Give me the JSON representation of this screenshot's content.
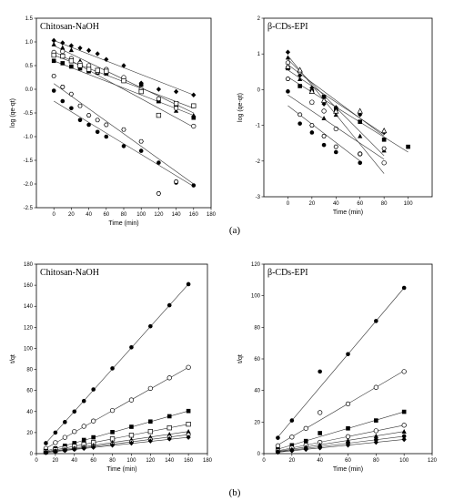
{
  "captions": [
    "(a)",
    "(b)"
  ],
  "chart_data": [
    {
      "type": "scatter",
      "title": "Chitosan-NaOH",
      "xlabel": "Time (min)",
      "ylabel": "log (qe-qt)",
      "xlim": [
        -20,
        180
      ],
      "ylim": [
        -2.5,
        1.5
      ],
      "xticks": [
        0,
        20,
        40,
        60,
        80,
        100,
        120,
        140,
        160,
        180
      ],
      "yticks": [
        -2.5,
        -2.0,
        -1.5,
        -1.0,
        -0.5,
        0.0,
        0.5,
        1.0,
        1.5
      ],
      "series": [
        {
          "marker": "diamond",
          "x": [
            0,
            10,
            20,
            30,
            40,
            50,
            60,
            80,
            100,
            120,
            140,
            160
          ],
          "y": [
            1.03,
            0.98,
            0.92,
            0.87,
            0.82,
            0.75,
            0.63,
            0.5,
            0.13,
            0.0,
            -0.05,
            -0.12
          ],
          "fit": [
            [
              0,
              1.03
            ],
            [
              160,
              -0.12
            ]
          ]
        },
        {
          "marker": "triangle",
          "x": [
            0,
            10,
            20,
            30,
            40,
            50,
            60,
            80,
            100,
            120,
            140,
            160
          ],
          "y": [
            0.95,
            0.88,
            0.83,
            0.6,
            0.47,
            0.38,
            0.35,
            0.2,
            0.0,
            -0.25,
            -0.45,
            -0.55
          ],
          "fit": [
            [
              0,
              0.92
            ],
            [
              160,
              -0.5
            ]
          ]
        },
        {
          "marker": "square-filled",
          "x": [
            0,
            10,
            20,
            30,
            40,
            50,
            60,
            80,
            100,
            120,
            140,
            160
          ],
          "y": [
            0.6,
            0.55,
            0.48,
            0.44,
            0.38,
            0.35,
            0.33,
            0.2,
            0.1,
            -0.25,
            -0.35,
            -0.6
          ],
          "fit": [
            [
              0,
              0.6
            ],
            [
              160,
              -0.55
            ]
          ]
        },
        {
          "marker": "circle-open",
          "x": [
            0,
            10,
            20,
            30,
            40,
            50,
            60,
            80,
            100,
            120,
            140,
            160
          ],
          "y": [
            0.78,
            0.8,
            0.65,
            0.55,
            0.5,
            0.37,
            0.42,
            0.25,
            0.0,
            -0.2,
            -0.4,
            -0.78
          ],
          "fit": [
            [
              0,
              0.8
            ],
            [
              160,
              -0.8
            ]
          ]
        },
        {
          "marker": "square-open",
          "x": [
            0,
            10,
            20,
            30,
            40,
            50,
            60,
            80,
            100,
            120,
            140,
            160
          ],
          "y": [
            0.72,
            0.7,
            0.6,
            0.5,
            0.42,
            0.4,
            0.38,
            0.18,
            -0.05,
            -0.55,
            -0.3,
            -0.35
          ],
          "fit": [
            [
              0,
              0.72
            ],
            [
              160,
              -0.4
            ]
          ]
        },
        {
          "marker": "circle-filled",
          "x": [
            0,
            10,
            20,
            30,
            40,
            50,
            60,
            80,
            100,
            120,
            140,
            160
          ],
          "y": [
            -0.03,
            -0.25,
            -0.4,
            -0.65,
            -0.75,
            -0.9,
            -1.0,
            -1.2,
            -1.3,
            -1.55,
            -1.97,
            -2.03
          ],
          "fit": [
            [
              0,
              -0.25
            ],
            [
              160,
              -2.05
            ]
          ]
        },
        {
          "marker": "hexagon-open",
          "x": [
            0,
            10,
            20,
            30,
            40,
            50,
            60,
            80,
            100,
            120,
            140
          ],
          "y": [
            0.28,
            0.05,
            -0.1,
            -0.35,
            -0.55,
            -0.65,
            -0.75,
            -0.85,
            -1.1,
            -2.2,
            -1.95
          ],
          "fit": [
            [
              0,
              0.12
            ],
            [
              160,
              -2.0
            ]
          ]
        }
      ]
    },
    {
      "type": "scatter",
      "title": "β-CDs-EPI",
      "xlabel": "Time (min)",
      "ylabel": "log (qe-qt)",
      "xlim": [
        -20,
        120
      ],
      "ylim": [
        -3,
        2
      ],
      "xticks": [
        0,
        20,
        40,
        60,
        80,
        100
      ],
      "yticks": [
        -3,
        -2,
        -1,
        0,
        1,
        2
      ],
      "series": [
        {
          "marker": "diamond",
          "x": [
            0,
            10,
            20,
            30,
            40,
            60,
            80
          ],
          "y": [
            1.05,
            0.4,
            0.05,
            -0.4,
            -0.5,
            -0.7,
            -1.2
          ],
          "fit": [
            [
              0,
              0.7
            ],
            [
              80,
              -1.3
            ]
          ]
        },
        {
          "marker": "triangle",
          "x": [
            0,
            10,
            20,
            30,
            40,
            60,
            80
          ],
          "y": [
            0.9,
            0.3,
            -0.35,
            -0.8,
            -0.7,
            -1.3,
            -1.7
          ],
          "fit": [
            [
              0,
              0.85
            ],
            [
              80,
              -1.85
            ]
          ]
        },
        {
          "marker": "square-filled",
          "x": [
            0,
            10,
            20,
            30,
            40,
            60,
            80,
            100
          ],
          "y": [
            0.6,
            0.1,
            -0.05,
            -0.2,
            -0.55,
            -0.9,
            -1.4,
            -1.6
          ],
          "fit": [
            [
              0,
              0.35
            ],
            [
              100,
              -1.75
            ]
          ]
        },
        {
          "marker": "circle-open",
          "x": [
            0,
            10,
            20,
            30,
            40,
            60,
            80
          ],
          "y": [
            0.75,
            0.5,
            -0.35,
            -0.6,
            -1.1,
            -1.8,
            -2.05
          ],
          "fit": [
            [
              0,
              0.95
            ],
            [
              80,
              -2.35
            ]
          ]
        },
        {
          "marker": "triangle-open",
          "x": [
            0,
            10,
            20,
            30,
            40,
            60,
            80
          ],
          "y": [
            0.65,
            0.55,
            -0.05,
            -0.3,
            -0.6,
            -0.6,
            -1.15
          ],
          "fit": [
            [
              0,
              0.55
            ],
            [
              80,
              -1.25
            ]
          ]
        },
        {
          "marker": "circle-filled",
          "x": [
            0,
            10,
            20,
            30,
            40,
            60
          ],
          "y": [
            -0.05,
            -0.95,
            -1.2,
            -1.55,
            -1.75,
            -2.05
          ],
          "fit": [
            [
              0,
              -0.45
            ],
            [
              60,
              -2.0
            ]
          ]
        },
        {
          "marker": "hexagon-open",
          "x": [
            0,
            10,
            20,
            30,
            40,
            60,
            80
          ],
          "y": [
            0.3,
            -0.7,
            -1.0,
            -1.3,
            -1.6,
            -1.8,
            -1.65
          ],
          "fit": [
            [
              0,
              -0.15
            ],
            [
              80,
              -1.95
            ]
          ]
        }
      ]
    },
    {
      "type": "scatter",
      "title": "Chitosan-NaOH",
      "xlabel": "Time (min)",
      "ylabel": "t/qt",
      "xlim": [
        0,
        180
      ],
      "ylim": [
        0,
        180
      ],
      "xticks": [
        0,
        20,
        40,
        60,
        80,
        100,
        120,
        140,
        160,
        180
      ],
      "yticks": [
        0,
        20,
        40,
        60,
        80,
        100,
        120,
        140,
        160,
        180
      ],
      "series": [
        {
          "marker": "circle-filled",
          "x": [
            10,
            20,
            30,
            40,
            50,
            60,
            80,
            100,
            120,
            140,
            160
          ],
          "y": [
            10,
            20,
            30,
            40,
            50,
            61,
            81,
            101,
            121,
            141,
            161
          ],
          "fit": [
            [
              10,
              10
            ],
            [
              160,
              161
            ]
          ]
        },
        {
          "marker": "circle-open",
          "x": [
            10,
            20,
            30,
            40,
            50,
            60,
            80,
            100,
            120,
            140,
            160
          ],
          "y": [
            5,
            10.5,
            15.5,
            21,
            26,
            31,
            41,
            51,
            62,
            72,
            82
          ],
          "fit": [
            [
              10,
              5
            ],
            [
              160,
              82
            ]
          ]
        },
        {
          "marker": "square-filled",
          "x": [
            10,
            20,
            30,
            40,
            50,
            60,
            80,
            100,
            120,
            140,
            160
          ],
          "y": [
            2.5,
            5,
            7.5,
            10,
            13,
            15.5,
            20.5,
            25.5,
            30.5,
            35.5,
            40.5
          ],
          "fit": [
            [
              10,
              2.5
            ],
            [
              160,
              40.5
            ]
          ]
        },
        {
          "marker": "square-open",
          "x": [
            10,
            20,
            30,
            40,
            50,
            60,
            80,
            100,
            120,
            140,
            160
          ],
          "y": [
            1.8,
            3.5,
            5.2,
            7,
            8.8,
            10.5,
            14,
            17.5,
            21,
            24.5,
            28
          ],
          "fit": [
            [
              10,
              1.8
            ],
            [
              160,
              28
            ]
          ]
        },
        {
          "marker": "triangle",
          "x": [
            10,
            20,
            30,
            40,
            50,
            60,
            80,
            100,
            120,
            140,
            160
          ],
          "y": [
            1.4,
            2.7,
            4,
            5.3,
            6.6,
            8,
            10.6,
            13.2,
            15.8,
            18.4,
            21
          ],
          "fit": [
            [
              10,
              1.4
            ],
            [
              160,
              21
            ]
          ]
        },
        {
          "marker": "hexagon-open",
          "x": [
            10,
            20,
            30,
            40,
            50,
            60,
            80,
            100,
            120,
            140,
            160
          ],
          "y": [
            1.1,
            2.3,
            3.4,
            4.5,
            5.7,
            6.8,
            9,
            11.3,
            13.5,
            15.8,
            18
          ],
          "fit": [
            [
              10,
              1.1
            ],
            [
              160,
              18
            ]
          ]
        },
        {
          "marker": "diamond",
          "x": [
            10,
            20,
            30,
            40,
            50,
            60,
            80,
            100,
            120,
            140,
            160
          ],
          "y": [
            1,
            2,
            3,
            4,
            5,
            6,
            8,
            10,
            12,
            14,
            15.5
          ],
          "fit": [
            [
              10,
              1
            ],
            [
              160,
              15.5
            ]
          ]
        }
      ]
    },
    {
      "type": "scatter",
      "title": "β-CDs-EPI",
      "xlabel": "Time (min)",
      "ylabel": "t/qt",
      "xlim": [
        0,
        120
      ],
      "ylim": [
        0,
        120
      ],
      "xticks": [
        0,
        20,
        40,
        60,
        80,
        100,
        120
      ],
      "yticks": [
        0,
        20,
        40,
        60,
        80,
        100,
        120
      ],
      "series": [
        {
          "marker": "circle-filled",
          "x": [
            10,
            20,
            40,
            60,
            80,
            100
          ],
          "y": [
            10,
            21,
            52,
            63,
            84,
            105
          ],
          "fit": [
            [
              10,
              10.5
            ],
            [
              100,
              105
            ]
          ]
        },
        {
          "marker": "circle-open",
          "x": [
            10,
            20,
            30,
            40,
            60,
            80,
            100
          ],
          "y": [
            5,
            10.5,
            16,
            26,
            31.5,
            42,
            52
          ],
          "fit": [
            [
              10,
              5.5
            ],
            [
              100,
              52.5
            ]
          ]
        },
        {
          "marker": "square-filled",
          "x": [
            10,
            20,
            30,
            40,
            60,
            80,
            100
          ],
          "y": [
            2.7,
            5.3,
            8,
            13,
            16,
            21,
            26.5
          ],
          "fit": [
            [
              10,
              2.8
            ],
            [
              100,
              26.5
            ]
          ]
        },
        {
          "marker": "circle-open",
          "x": [
            10,
            20,
            30,
            40,
            60,
            80,
            100
          ],
          "y": [
            1.8,
            3.6,
            5.4,
            7.2,
            10.8,
            14.5,
            18
          ],
          "fit": [
            [
              10,
              1.8
            ],
            [
              100,
              18
            ]
          ]
        },
        {
          "marker": "triangle",
          "x": [
            10,
            20,
            30,
            40,
            60,
            80,
            100
          ],
          "y": [
            1.4,
            2.8,
            4.2,
            5.6,
            8.4,
            11.2,
            14
          ],
          "fit": [
            [
              10,
              1.4
            ],
            [
              100,
              14
            ]
          ]
        },
        {
          "marker": "circle-filled",
          "x": [
            10,
            20,
            30,
            40,
            60,
            80,
            100
          ],
          "y": [
            1.1,
            2.2,
            3.3,
            4.4,
            6.6,
            8.8,
            11
          ],
          "fit": [
            [
              10,
              1.1
            ],
            [
              100,
              11
            ]
          ]
        },
        {
          "marker": "diamond",
          "x": [
            10,
            20,
            30,
            40,
            60,
            80,
            100
          ],
          "y": [
            0.9,
            1.8,
            2.7,
            3.6,
            5.4,
            7.2,
            9
          ],
          "fit": [
            [
              10,
              0.9
            ],
            [
              100,
              9
            ]
          ]
        }
      ]
    }
  ]
}
